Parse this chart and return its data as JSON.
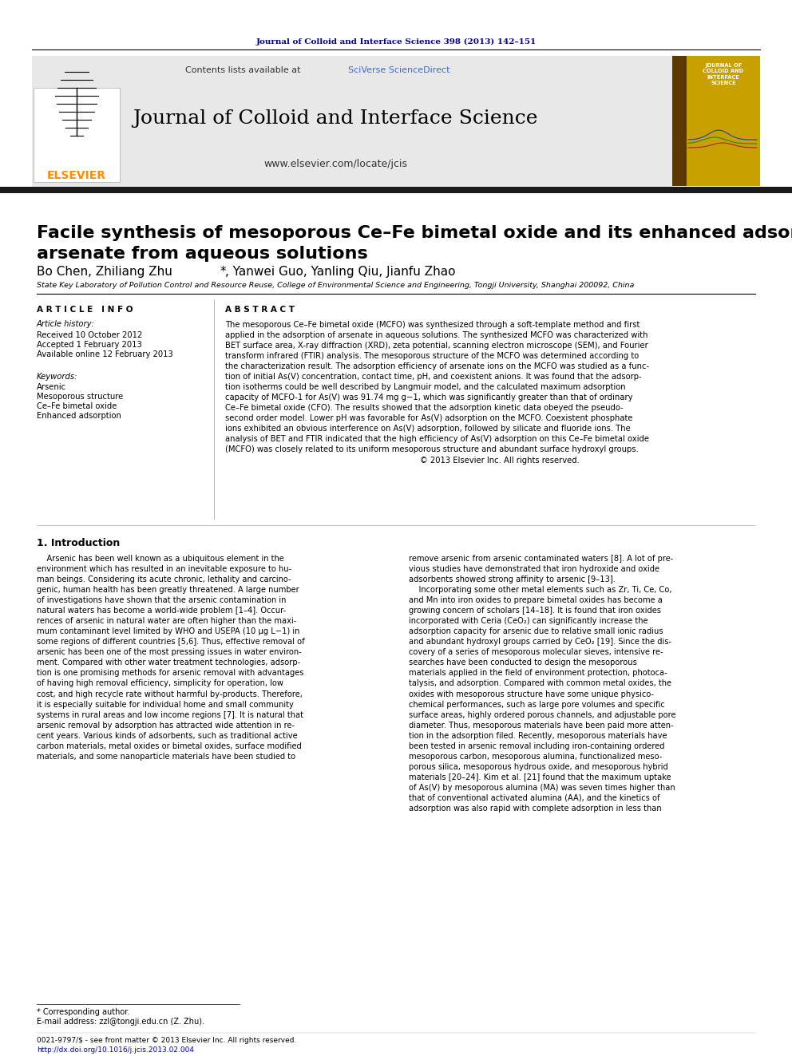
{
  "journal_header_text": "Journal of Colloid and Interface Science 398 (2013) 142–151",
  "journal_header_color": "#00008B",
  "contents_text": "Contents lists available at ",
  "sciverse_text": "SciVerse ScienceDirect",
  "sciverse_color": "#4169E1",
  "journal_title": "Journal of Colloid and Interface Science",
  "journal_url": "www.elsevier.com/locate/jcis",
  "elsevier_color": "#FF8C00",
  "header_bg": "#E8E8E8",
  "black_bar_color": "#1a1a1a",
  "paper_title": "Facile synthesis of mesoporous Ce–Fe bimetal oxide and its enhanced adsorption of\narsenate from aqueous solutions",
  "authors_part1": "Bo Chen, Zhiliang Zhu ",
  "authors_asterisk": "*",
  "authors_part2": ", Yanwei Guo, Yanling Qiu, Jianfu Zhao",
  "affiliation": "State Key Laboratory of Pollution Control and Resource Reuse, College of Environmental Science and Engineering, Tongji University, Shanghai 200092, China",
  "article_info_header": "A R T I C L E   I N F O",
  "abstract_header": "A B S T R A C T",
  "article_history_label": "Article history:",
  "received": "Received 10 October 2012",
  "accepted": "Accepted 1 February 2013",
  "available": "Available online 12 February 2013",
  "keywords_label": "Keywords:",
  "keyword1": "Arsenic",
  "keyword2": "Mesoporous structure",
  "keyword3": "Ce–Fe bimetal oxide",
  "keyword4": "Enhanced adsorption",
  "abstract_text": "The mesoporous Ce–Fe bimetal oxide (MCFO) was synthesized through a soft-template method and first\napplied in the adsorption of arsenate in aqueous solutions. The synthesized MCFO was characterized with\nBET surface area, X-ray diffraction (XRD), zeta potential, scanning electron microscope (SEM), and Fourier\ntransform infrared (FTIR) analysis. The mesoporous structure of the MCFO was determined according to\nthe characterization result. The adsorption efficiency of arsenate ions on the MCFO was studied as a func-\ntion of initial As(V) concentration, contact time, pH, and coexistent anions. It was found that the adsorp-\ntion isotherms could be well described by Langmuir model, and the calculated maximum adsorption\ncapacity of MCFO-1 for As(V) was 91.74 mg g−1, which was significantly greater than that of ordinary\nCe–Fe bimetal oxide (CFO). The results showed that the adsorption kinetic data obeyed the pseudo-\nsecond order model. Lower pH was favorable for As(V) adsorption on the MCFO. Coexistent phosphate\nions exhibited an obvious interference on As(V) adsorption, followed by silicate and fluoride ions. The\nanalysis of BET and FTIR indicated that the high efficiency of As(V) adsorption on this Ce–Fe bimetal oxide\n(MCFO) was closely related to its uniform mesoporous structure and abundant surface hydroxyl groups.\n                                                                              © 2013 Elsevier Inc. All rights reserved.",
  "intro_header": "1. Introduction",
  "intro_text1": "    Arsenic has been well known as a ubiquitous element in the\nenvironment which has resulted in an inevitable exposure to hu-\nman beings. Considering its acute chronic, lethality and carcino-\ngenic, human health has been greatly threatened. A large number\nof investigations have shown that the arsenic contamination in\nnatural waters has become a world-wide problem [1–4]. Occur-\nrences of arsenic in natural water are often higher than the maxi-\nmum contaminant level limited by WHO and USEPA (10 μg L−1) in\nsome regions of different countries [5,6]. Thus, effective removal of\narsenic has been one of the most pressing issues in water environ-\nment. Compared with other water treatment technologies, adsorp-\ntion is one promising methods for arsenic removal with advantages\nof having high removal efficiency, simplicity for operation, low\ncost, and high recycle rate without harmful by-products. Therefore,\nit is especially suitable for individual home and small community\nsystems in rural areas and low income regions [7]. It is natural that\narsenic removal by adsorption has attracted wide attention in re-\ncent years. Various kinds of adsorbents, such as traditional active\ncarbon materials, metal oxides or bimetal oxides, surface modified\nmaterials, and some nanoparticle materials have been studied to",
  "intro_text2": "remove arsenic from arsenic contaminated waters [8]. A lot of pre-\nvious studies have demonstrated that iron hydroxide and oxide\nadsorbents showed strong affinity to arsenic [9–13].\n    Incorporating some other metal elements such as Zr, Ti, Ce, Co,\nand Mn into iron oxides to prepare bimetal oxides has become a\ngrowing concern of scholars [14–18]. It is found that iron oxides\nincorporated with Ceria (CeO₂) can significantly increase the\nadsorption capacity for arsenic due to relative small ionic radius\nand abundant hydroxyl groups carried by CeO₂ [19]. Since the dis-\ncovery of a series of mesoporous molecular sieves, intensive re-\nsearches have been conducted to design the mesoporous\nmaterials applied in the field of environment protection, photoca-\ntalysis, and adsorption. Compared with common metal oxides, the\noxides with mesoporous structure have some unique physico-\nchemical performances, such as large pore volumes and specific\nsurface areas, highly ordered porous channels, and adjustable pore\ndiameter. Thus, mesoporous materials have been paid more atten-\ntion in the adsorption filed. Recently, mesoporous materials have\nbeen tested in arsenic removal including iron-containing ordered\nmesoporous carbon, mesoporous alumina, functionalized meso-\nporous silica, mesoporous hydrous oxide, and mesoporous hybrid\nmaterials [20–24]. Kim et al. [21] found that the maximum uptake\nof As(V) by mesoporous alumina (MA) was seven times higher than\nthat of conventional activated alumina (AA), and the kinetics of\nadsorption was also rapid with complete adsorption in less than",
  "footnote_corresponding": "* Corresponding author.",
  "footnote_email": "E-mail address: zzl@tongji.edu.cn (Z. Zhu).",
  "issn_text": "0021-9797/$ - see front matter © 2013 Elsevier Inc. All rights reserved.",
  "doi_text": "http://dx.doi.org/10.1016/j.jcis.2013.02.004",
  "doi_color": "#0000CD",
  "bg_color": "#FFFFFF",
  "text_color": "#000000",
  "dark_navy": "#00008B"
}
